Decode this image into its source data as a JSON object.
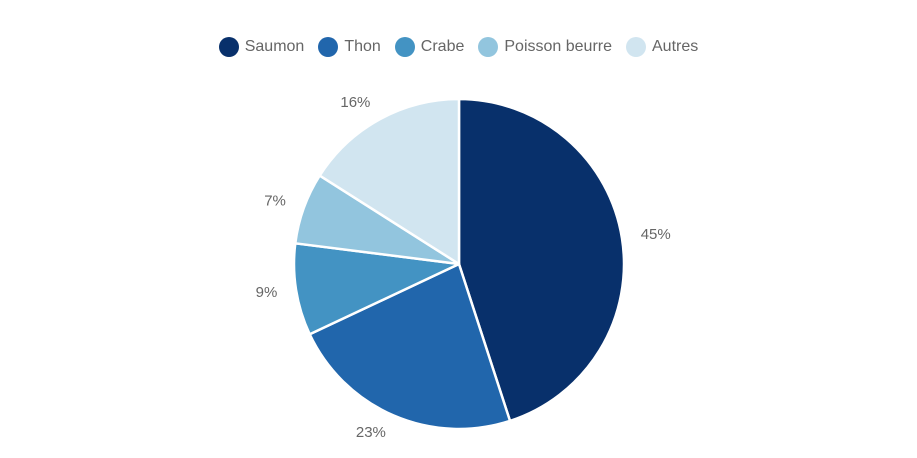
{
  "chart_data": {
    "type": "pie",
    "categories": [
      "Saumon",
      "Thon",
      "Crabe",
      "Poisson beurre",
      "Autres"
    ],
    "values": [
      45,
      23,
      9,
      7,
      16
    ],
    "value_labels": [
      "45%",
      "23%",
      "9%",
      "7%",
      "16%"
    ],
    "unit": "%",
    "colors": [
      "#08306b",
      "#2166ac",
      "#4393c3",
      "#92c5de",
      "#d1e5f0"
    ],
    "slice_border_color": "#ffffff",
    "legend": "top-center",
    "start_angle_deg": 0,
    "direction": "clockwise"
  }
}
